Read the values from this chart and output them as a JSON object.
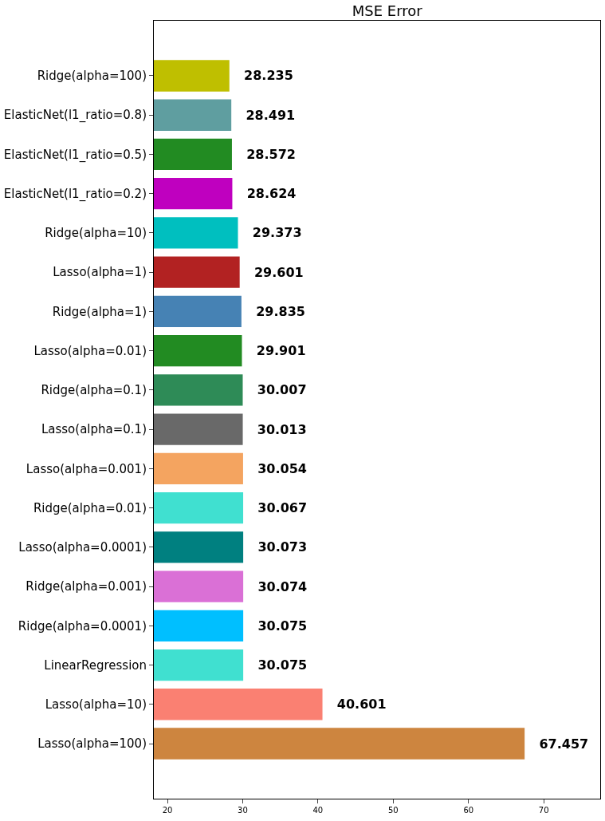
{
  "chart_data": {
    "type": "bar",
    "orientation": "horizontal",
    "title": "MSE Error",
    "categories": [
      "Ridge(alpha=100)",
      "ElasticNet(l1_ratio=0.8)",
      "ElasticNet(l1_ratio=0.5)",
      "ElasticNet(l1_ratio=0.2)",
      "Ridge(alpha=10)",
      "Lasso(alpha=1)",
      "Ridge(alpha=1)",
      "Lasso(alpha=0.01)",
      "Ridge(alpha=0.1)",
      "Lasso(alpha=0.1)",
      "Lasso(alpha=0.001)",
      "Ridge(alpha=0.01)",
      "Lasso(alpha=0.0001)",
      "Ridge(alpha=0.001)",
      "Ridge(alpha=0.0001)",
      "LinearRegression",
      "Lasso(alpha=10)",
      "Lasso(alpha=100)"
    ],
    "values": [
      28.235,
      28.491,
      28.572,
      28.624,
      29.373,
      29.601,
      29.835,
      29.901,
      30.007,
      30.013,
      30.054,
      30.067,
      30.073,
      30.074,
      30.075,
      30.075,
      40.601,
      67.457
    ],
    "colors": [
      "#bfbf00",
      "#5f9ea0",
      "#228b22",
      "#bf00bf",
      "#00bfbf",
      "#b22222",
      "#4682b4",
      "#228b22",
      "#2e8b57",
      "#696969",
      "#f4a460",
      "#40e0d0",
      "#008080",
      "#da70d6",
      "#00bfff",
      "#40e0d0",
      "#fa8072",
      "#cd853f"
    ],
    "xlim": [
      18.2,
      77.5
    ],
    "xticks": [
      20,
      30,
      40,
      50,
      60,
      70
    ],
    "data_labels": true,
    "legend": false
  }
}
